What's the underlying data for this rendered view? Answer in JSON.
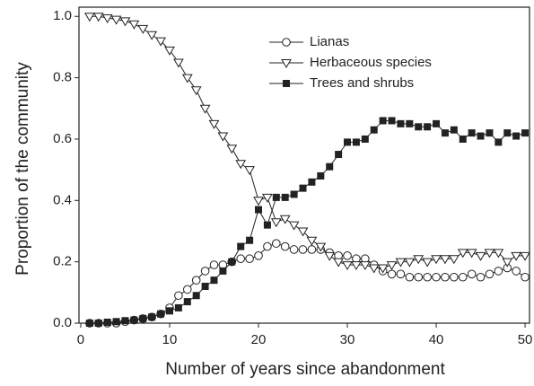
{
  "chart_data": {
    "type": "line",
    "xlabel": "Number of years since abandonment",
    "ylabel": "Proportion of the community",
    "x": [
      1,
      2,
      3,
      4,
      5,
      6,
      7,
      8,
      9,
      10,
      11,
      12,
      13,
      14,
      15,
      16,
      17,
      18,
      19,
      20,
      21,
      22,
      23,
      24,
      25,
      26,
      27,
      28,
      29,
      30,
      31,
      32,
      33,
      34,
      35,
      36,
      37,
      38,
      39,
      40,
      41,
      42,
      43,
      44,
      45,
      46,
      47,
      48,
      49,
      50
    ],
    "series": [
      {
        "name": "Lianas",
        "color": "#222222",
        "marker": "circle",
        "values": [
          0,
          0,
          0,
          0,
          0.005,
          0.01,
          0.015,
          0.02,
          0.03,
          0.05,
          0.09,
          0.11,
          0.14,
          0.17,
          0.19,
          0.19,
          0.2,
          0.21,
          0.21,
          0.22,
          0.25,
          0.26,
          0.25,
          0.24,
          0.24,
          0.24,
          0.24,
          0.23,
          0.22,
          0.22,
          0.21,
          0.21,
          0.19,
          0.17,
          0.16,
          0.16,
          0.15,
          0.15,
          0.15,
          0.15,
          0.15,
          0.15,
          0.15,
          0.16,
          0.15,
          0.16,
          0.17,
          0.18,
          0.17,
          0.15
        ]
      },
      {
        "name": "Herbaceous species",
        "color": "#222222",
        "marker": "triangle-down",
        "values": [
          1.0,
          1.0,
          0.995,
          0.99,
          0.985,
          0.975,
          0.96,
          0.94,
          0.92,
          0.89,
          0.85,
          0.8,
          0.76,
          0.7,
          0.65,
          0.61,
          0.57,
          0.52,
          0.5,
          0.4,
          0.41,
          0.33,
          0.34,
          0.32,
          0.3,
          0.27,
          0.25,
          0.22,
          0.2,
          0.19,
          0.19,
          0.19,
          0.18,
          0.18,
          0.19,
          0.2,
          0.2,
          0.21,
          0.2,
          0.21,
          0.21,
          0.21,
          0.23,
          0.23,
          0.22,
          0.23,
          0.23,
          0.2,
          0.22,
          0.22
        ]
      },
      {
        "name": "Trees and shrubs",
        "color": "#222222",
        "marker": "square",
        "values": [
          0,
          0,
          0.003,
          0.005,
          0.008,
          0.01,
          0.015,
          0.02,
          0.03,
          0.04,
          0.05,
          0.07,
          0.09,
          0.12,
          0.14,
          0.17,
          0.2,
          0.25,
          0.27,
          0.37,
          0.32,
          0.41,
          0.41,
          0.42,
          0.44,
          0.46,
          0.48,
          0.51,
          0.55,
          0.59,
          0.59,
          0.6,
          0.63,
          0.66,
          0.66,
          0.65,
          0.65,
          0.64,
          0.64,
          0.65,
          0.62,
          0.63,
          0.6,
          0.62,
          0.61,
          0.62,
          0.59,
          0.62,
          0.61,
          0.62
        ]
      }
    ],
    "xlim": [
      -0.2,
      50.5
    ],
    "ylim": [
      0,
      1.03
    ],
    "xticks": [
      0,
      10,
      20,
      30,
      40,
      50
    ],
    "yticks": [
      {
        "value": 0,
        "label": "0.0"
      },
      0.2,
      0.4,
      0.6,
      0.8,
      {
        "value": 1,
        "label": "1.0"
      }
    ],
    "legend": "top"
  }
}
